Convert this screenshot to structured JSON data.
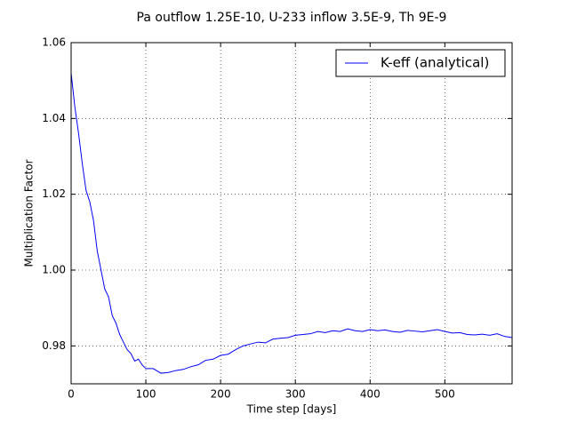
{
  "chart_data": {
    "type": "line",
    "title": "Pa outflow 1.25E-10, U-233 inflow 3.5E-9, Th 9E-9",
    "x_label": "Time step [days]",
    "y_label": "Multiplication Factor",
    "x": [
      0,
      5,
      10,
      15,
      20,
      25,
      30,
      35,
      40,
      45,
      50,
      55,
      60,
      65,
      70,
      75,
      80,
      85,
      90,
      95,
      100,
      110,
      120,
      130,
      140,
      150,
      160,
      170,
      180,
      190,
      200,
      210,
      220,
      230,
      240,
      250,
      260,
      270,
      280,
      290,
      300,
      310,
      320,
      330,
      340,
      350,
      360,
      370,
      380,
      390,
      400,
      410,
      420,
      430,
      440,
      450,
      460,
      470,
      480,
      490,
      500,
      510,
      520,
      530,
      540,
      550,
      560,
      570,
      580,
      590
    ],
    "series": [
      {
        "name": "K-eff (analytical)",
        "color": "#0000ff",
        "values": [
          1.052,
          1.043,
          1.036,
          1.028,
          1.021,
          1.018,
          1.013,
          1.005,
          1.0,
          0.995,
          0.993,
          0.988,
          0.986,
          0.983,
          0.981,
          0.979,
          0.978,
          0.976,
          0.9765,
          0.975,
          0.974,
          0.974,
          0.9728,
          0.973,
          0.9735,
          0.9738,
          0.9745,
          0.975,
          0.9762,
          0.9765,
          0.9775,
          0.9778,
          0.979,
          0.98,
          0.9805,
          0.981,
          0.9808,
          0.9818,
          0.982,
          0.9822,
          0.9828,
          0.983,
          0.9832,
          0.9838,
          0.9835,
          0.984,
          0.9838,
          0.9845,
          0.984,
          0.9838,
          0.9843,
          0.984,
          0.9842,
          0.9838,
          0.9836,
          0.9841,
          0.9839,
          0.9837,
          0.984,
          0.9843,
          0.9838,
          0.9834,
          0.9835,
          0.983,
          0.9829,
          0.9831,
          0.9828,
          0.9832,
          0.9825,
          0.9822
        ]
      }
    ],
    "xlim": [
      0,
      590
    ],
    "ylim": [
      0.97,
      1.06
    ],
    "xticks": [
      0,
      100,
      200,
      300,
      400,
      500
    ],
    "yticks": [
      0.98,
      {
        "value": 1.0,
        "label": "1.00"
      },
      1.02,
      1.04,
      1.06
    ],
    "grid": true,
    "legend": "upper-right"
  }
}
